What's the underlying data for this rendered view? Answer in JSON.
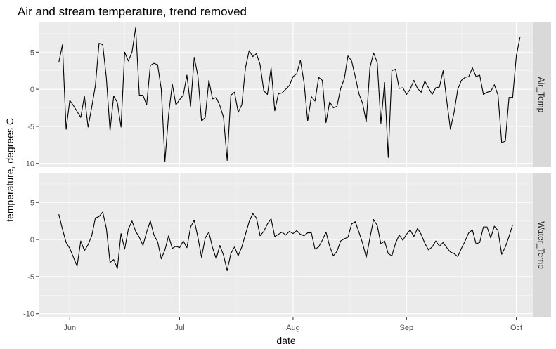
{
  "chart_data": {
    "type": "line",
    "title": "Air and stream temperature, trend removed",
    "xlabel": "date",
    "ylabel": "temperature, degrees C",
    "x_ticks": [
      "Jun",
      "Jul",
      "Aug",
      "Sep",
      "Oct"
    ],
    "y_ticks": [
      "5",
      "0",
      "-5",
      "-10"
    ],
    "ylim": [
      -10.5,
      9
    ],
    "grid": true,
    "x_start": "2014-05-29",
    "facets": [
      {
        "label": "Air_Temp",
        "values": [
          3.6,
          6.0,
          -5.4,
          -1.5,
          -2.2,
          -3.0,
          -3.8,
          -0.9,
          -5.1,
          -2.4,
          0.5,
          6.2,
          6.0,
          1.5,
          -5.6,
          -0.9,
          -1.8,
          -5.1,
          5.0,
          3.8,
          5.0,
          8.3,
          -0.8,
          -0.8,
          -2.1,
          3.2,
          3.5,
          3.3,
          0.0,
          -9.7,
          -3.4,
          0.7,
          -2.1,
          -1.4,
          -0.8,
          1.9,
          -2.3,
          4.3,
          1.8,
          -4.3,
          -3.8,
          1.2,
          -1.3,
          -1.1,
          -2.2,
          -3.8,
          -9.6,
          -0.8,
          -0.4,
          -3.1,
          -2.1,
          2.9,
          5.2,
          4.4,
          4.8,
          3.3,
          -0.2,
          -0.7,
          2.9,
          -2.9,
          -0.6,
          -0.5,
          0.0,
          0.5,
          1.7,
          2.1,
          3.9,
          0.9,
          -4.3,
          -1.0,
          -1.6,
          1.6,
          1.2,
          -4.5,
          -1.7,
          -2.5,
          -2.3,
          0.1,
          1.4,
          4.5,
          3.8,
          1.7,
          -0.6,
          -1.9,
          -4.4,
          2.9,
          4.9,
          3.6,
          -4.6,
          0.9,
          -9.2,
          2.5,
          2.7,
          0.1,
          0.2,
          -0.7,
          0.0,
          1.2,
          0.1,
          -0.4,
          1.1,
          0.2,
          -0.7,
          0.2,
          0.3,
          2.5,
          -1.6,
          -5.4,
          -3.1,
          0.0,
          1.2,
          1.6,
          1.7,
          2.9,
          1.7,
          1.9,
          -0.7,
          -0.4,
          -0.3,
          0.6,
          -0.8,
          -7.2,
          -7.0,
          -1.1,
          -1.1,
          4.5,
          7.0
        ]
      },
      {
        "label": "Water_Temp",
        "values": [
          3.4,
          1.4,
          -0.4,
          -1.2,
          -2.4,
          -3.6,
          -0.2,
          -1.5,
          -0.7,
          0.5,
          2.9,
          3.1,
          3.7,
          1.5,
          -3.1,
          -2.7,
          -3.9,
          0.8,
          -1.3,
          1.4,
          2.5,
          1.1,
          0.3,
          -0.8,
          1.0,
          2.5,
          0.6,
          -0.3,
          -2.6,
          -1.4,
          0.5,
          -1.2,
          -0.9,
          -1.1,
          -0.2,
          -1.1,
          1.7,
          2.6,
          0.3,
          -2.4,
          0.2,
          1.0,
          -1.1,
          -2.6,
          -0.8,
          -2.1,
          -4.2,
          -1.9,
          -1.0,
          -2.2,
          -1.0,
          0.7,
          2.4,
          3.5,
          2.9,
          0.5,
          1.1,
          2.1,
          2.8,
          0.4,
          0.7,
          1.0,
          0.6,
          1.1,
          0.8,
          1.2,
          0.7,
          0.5,
          0.9,
          0.9,
          -1.3,
          -1.0,
          -0.1,
          1.0,
          -0.9,
          -2.2,
          -1.6,
          -0.2,
          0.1,
          0.3,
          2.1,
          2.4,
          1.0,
          -0.5,
          -2.4,
          0.2,
          2.7,
          1.9,
          -0.6,
          -0.2,
          -1.9,
          -2.2,
          -0.5,
          0.6,
          -0.1,
          0.7,
          1.3,
          0.4,
          1.5,
          0.7,
          -0.5,
          -1.4,
          -1.0,
          -0.2,
          -0.9,
          -0.4,
          -1.1,
          -1.7,
          -1.9,
          -2.3,
          -1.2,
          -0.2,
          0.9,
          1.3,
          -0.6,
          -0.4,
          1.7,
          1.7,
          0.2,
          1.8,
          1.2,
          -2.0,
          -1.0,
          0.4,
          2.0
        ]
      }
    ]
  }
}
